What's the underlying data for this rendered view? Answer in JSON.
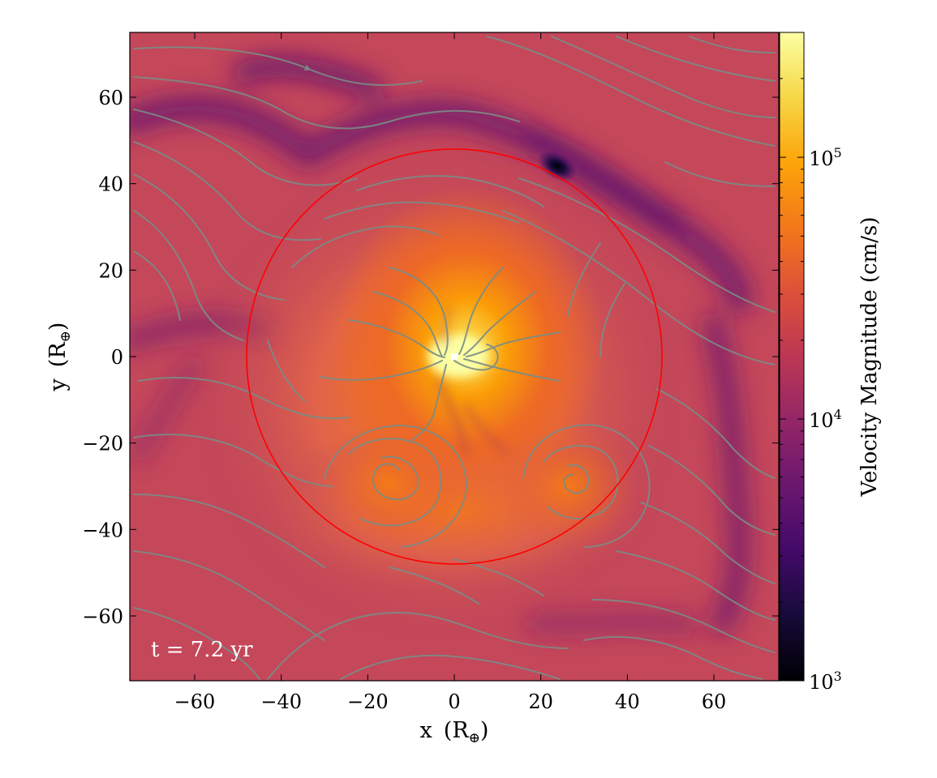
{
  "chart_data": {
    "type": "heatmap",
    "quantity": "velocity magnitude",
    "xlabel": "x",
    "xunit": "R",
    "xunit_sub": "⊕",
    "ylabel": "y",
    "yunit": "R",
    "yunit_sub": "⊕",
    "xlim": [
      -75,
      75
    ],
    "ylim": [
      -75,
      75
    ],
    "xticks": [
      -60,
      -40,
      -20,
      0,
      20,
      40,
      60
    ],
    "yticks": [
      60,
      40,
      20,
      0,
      -20,
      -40,
      -60
    ],
    "xtick_labels": [
      "−60",
      "−40",
      "−20",
      "0",
      "20",
      "40",
      "60"
    ],
    "ytick_labels": [
      "60",
      "40",
      "20",
      "0",
      "−20",
      "−40",
      "−60"
    ],
    "colorbar": {
      "label": "Velocity Magnitude  (cm/s)",
      "scale": "log",
      "range": [
        1000,
        300000
      ],
      "colormap": "inferno",
      "ticks": [
        {
          "value": 1000,
          "base": "10",
          "exp": "3"
        },
        {
          "value": 10000,
          "base": "10",
          "exp": "4"
        },
        {
          "value": 100000,
          "base": "10",
          "exp": "5"
        }
      ]
    },
    "annotation": "t = 7.2 yr",
    "circle": {
      "center": [
        0,
        0
      ],
      "radius": 48,
      "color": "#ff0000"
    },
    "streamline_color": "#7a8c86",
    "features": {
      "peak_center": [
        0,
        0
      ],
      "vortex_left": [
        -14,
        -29
      ],
      "vortex_right": [
        28,
        -30
      ],
      "low_velocity_spot": [
        24,
        44
      ]
    }
  }
}
